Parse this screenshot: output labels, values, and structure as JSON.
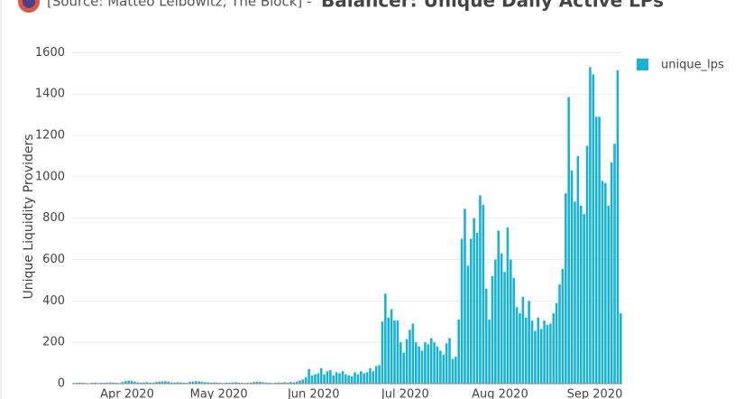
{
  "chart_data": {
    "type": "bar",
    "source": "[Source: Matteo Leibowitz, The Block] -",
    "title": "Balancer: Unique Daily Active LPs",
    "y_label": "Unique Liquidity Providers",
    "color": "#17b3d6",
    "grid": true,
    "legend": "top-right",
    "series_name": "unique_lps",
    "ylim": [
      0,
      1750
    ],
    "yticks": [
      0,
      200,
      400,
      600,
      800,
      1000,
      1200,
      1400,
      1600
    ],
    "categories": [
      null,
      null,
      null,
      null,
      null,
      null,
      null,
      null,
      null,
      null,
      null,
      null,
      null,
      null,
      null,
      null,
      null,
      null,
      "Apr 2020",
      null,
      null,
      null,
      null,
      null,
      null,
      null,
      null,
      null,
      null,
      null,
      null,
      null,
      null,
      null,
      null,
      null,
      null,
      null,
      null,
      null,
      null,
      null,
      null,
      null,
      null,
      null,
      null,
      null,
      "May 2020",
      null,
      null,
      null,
      null,
      null,
      null,
      null,
      null,
      null,
      null,
      null,
      null,
      null,
      null,
      null,
      null,
      null,
      null,
      null,
      null,
      null,
      null,
      null,
      null,
      null,
      null,
      null,
      null,
      null,
      null,
      "Jun 2020",
      null,
      null,
      null,
      null,
      null,
      null,
      null,
      null,
      null,
      null,
      null,
      null,
      null,
      null,
      null,
      null,
      null,
      null,
      null,
      null,
      null,
      null,
      null,
      null,
      null,
      null,
      null,
      null,
      null,
      "Jul 2020",
      null,
      null,
      null,
      null,
      null,
      null,
      null,
      null,
      null,
      null,
      null,
      null,
      null,
      null,
      null,
      null,
      null,
      null,
      null,
      null,
      null,
      null,
      null,
      null,
      null,
      null,
      null,
      null,
      null,
      null,
      "Aug 2020",
      null,
      null,
      null,
      null,
      null,
      null,
      null,
      null,
      null,
      null,
      null,
      null,
      null,
      null,
      null,
      null,
      null,
      null,
      null,
      null,
      null,
      null,
      null,
      null,
      null,
      null,
      null,
      null,
      null,
      null,
      "Sep 2020",
      null,
      null,
      null,
      null,
      null,
      null,
      null,
      null
    ],
    "values": [
      3,
      4,
      5,
      4,
      3,
      2,
      4,
      5,
      3,
      4,
      4,
      5,
      6,
      5,
      4,
      3,
      8,
      12,
      15,
      14,
      10,
      6,
      5,
      6,
      7,
      5,
      4,
      8,
      10,
      11,
      12,
      9,
      6,
      5,
      7,
      6,
      5,
      4,
      8,
      10,
      12,
      11,
      9,
      7,
      6,
      5,
      6,
      5,
      4,
      3,
      5,
      4,
      6,
      7,
      5,
      4,
      3,
      4,
      5,
      8,
      10,
      9,
      7,
      5,
      4,
      3,
      4,
      6,
      5,
      7,
      5,
      8,
      6,
      10,
      15,
      20,
      30,
      70,
      40,
      45,
      50,
      75,
      45,
      60,
      65,
      40,
      55,
      50,
      60,
      45,
      40,
      35,
      55,
      45,
      60,
      50,
      55,
      75,
      60,
      85,
      90,
      300,
      435,
      320,
      360,
      305,
      305,
      200,
      150,
      215,
      260,
      290,
      200,
      180,
      160,
      200,
      190,
      220,
      200,
      180,
      160,
      140,
      195,
      220,
      120,
      130,
      310,
      700,
      845,
      570,
      700,
      800,
      730,
      910,
      865,
      460,
      310,
      520,
      600,
      740,
      630,
      540,
      755,
      600,
      510,
      370,
      340,
      420,
      320,
      400,
      305,
      255,
      320,
      265,
      305,
      285,
      290,
      340,
      390,
      480,
      555,
      920,
      1385,
      1030,
      880,
      1100,
      860,
      820,
      1150,
      1530,
      1495,
      1290,
      1290,
      980,
      970,
      860,
      1070,
      1160,
      1515,
      340
    ]
  }
}
